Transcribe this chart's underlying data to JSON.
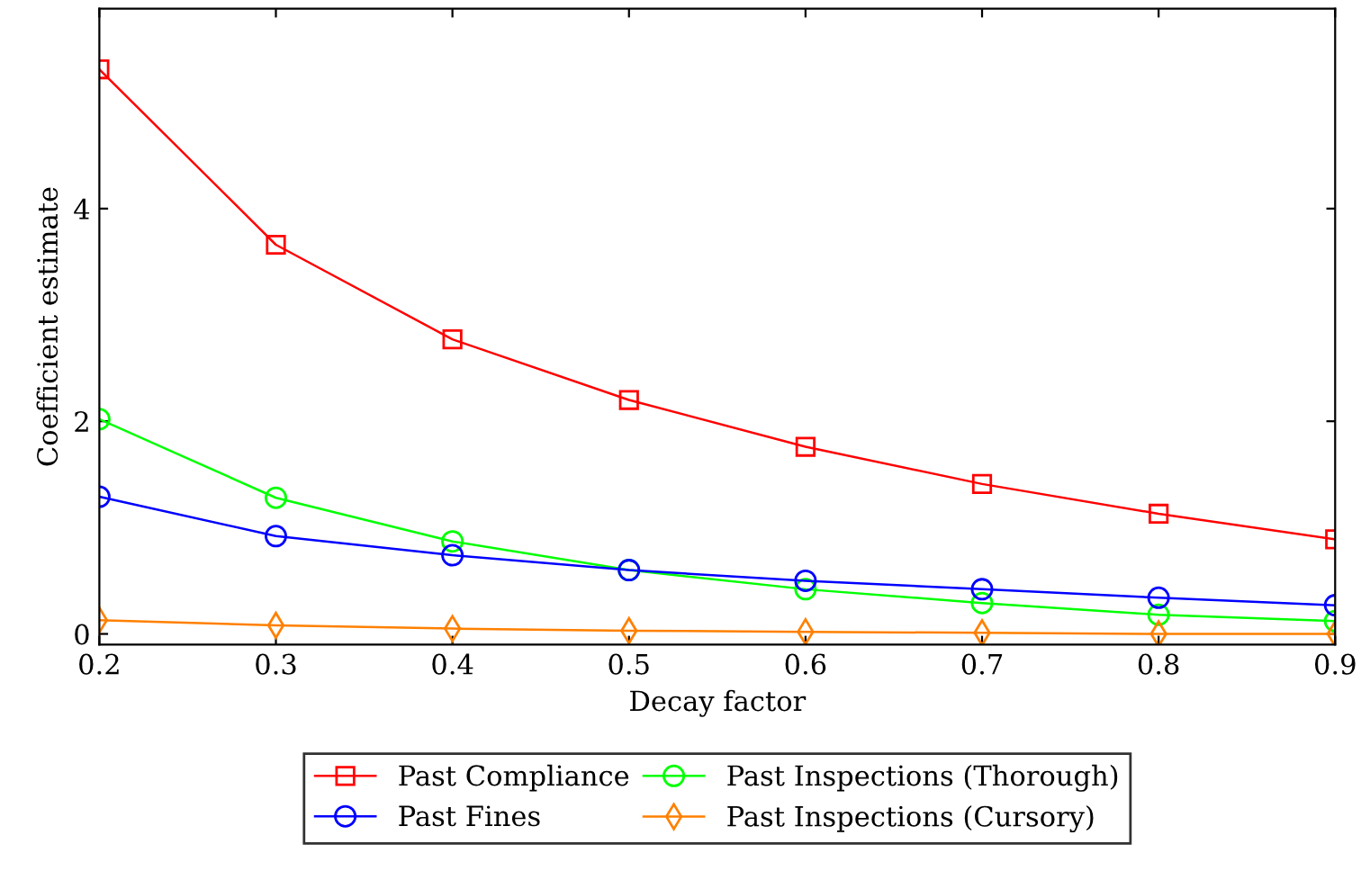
{
  "chart_data": {
    "type": "line",
    "xlabel": "Decay factor",
    "ylabel": "Coefficient estimate",
    "x": [
      0.2,
      0.3,
      0.4,
      0.5,
      0.6,
      0.7,
      0.8,
      0.9
    ],
    "xlim": [
      0.2,
      0.9
    ],
    "xticks": [
      0.2,
      0.3,
      0.4,
      0.5,
      0.6,
      0.7,
      0.8,
      0.9
    ],
    "ylim": [
      -0.1,
      5.88
    ],
    "yticks": [
      0,
      2,
      4
    ],
    "grid": false,
    "legend": "bottom",
    "series": [
      {
        "name": "Past Compliance",
        "color": "#ff0000",
        "marker": "square",
        "values": [
          5.31,
          3.66,
          2.77,
          2.2,
          1.76,
          1.41,
          1.13,
          0.89
        ]
      },
      {
        "name": "Past Inspections (Thorough)",
        "color": "#00ff00",
        "marker": "circle",
        "values": [
          2.02,
          1.28,
          0.87,
          0.6,
          0.42,
          0.29,
          0.18,
          0.12
        ]
      },
      {
        "name": "Past Fines",
        "color": "#0000ff",
        "marker": "circle",
        "values": [
          1.29,
          0.92,
          0.74,
          0.6,
          0.5,
          0.42,
          0.34,
          0.27
        ]
      },
      {
        "name": "Past Inspections (Cursory)",
        "color": "#ff8000",
        "marker": "diamond",
        "values": [
          0.13,
          0.08,
          0.05,
          0.03,
          0.02,
          0.01,
          0.0,
          0.0
        ]
      }
    ]
  }
}
